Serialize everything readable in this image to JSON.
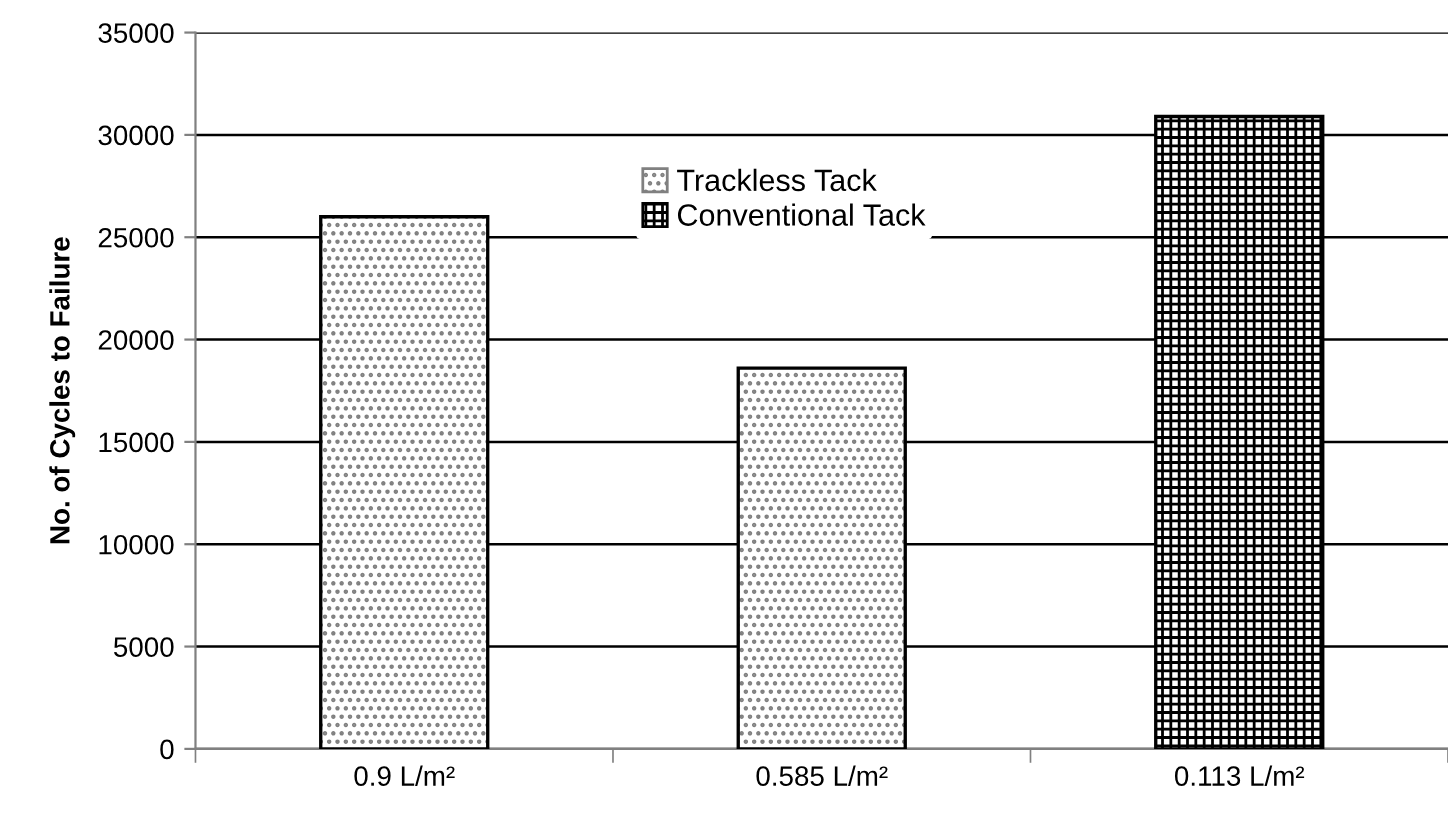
{
  "chart_data": {
    "type": "bar",
    "ylabel": "No. of Cycles to Failure",
    "categories": [
      "0.9 L/m²",
      "0.585 L/m²",
      "0.113 L/m²"
    ],
    "series": [
      {
        "name": "Trackless Tack",
        "color": "#808080",
        "values": [
          26000,
          18600,
          null
        ]
      },
      {
        "name": "Conventional Tack",
        "color": "#000000",
        "values": [
          null,
          null,
          30900
        ]
      }
    ],
    "ylim": [
      0,
      35000
    ],
    "yticks": [
      0,
      5000,
      10000,
      15000,
      20000,
      25000,
      30000,
      35000
    ],
    "grid": "y",
    "legend": "top"
  }
}
